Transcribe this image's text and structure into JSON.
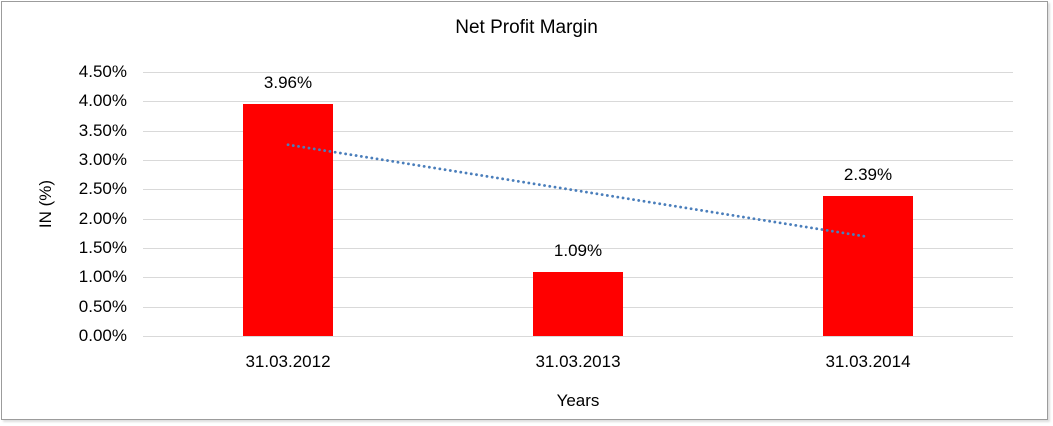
{
  "chart_data": {
    "type": "bar",
    "title": "Net Profit Margin",
    "xlabel": "Years",
    "ylabel": "IN (%)",
    "categories": [
      "31.03.2012",
      "31.03.2013",
      "31.03.2014"
    ],
    "values": [
      3.96,
      1.09,
      2.39
    ],
    "data_labels": [
      "3.96%",
      "1.09%",
      "2.39%"
    ],
    "ylim": [
      0,
      4.5
    ],
    "ytick_step": 0.5,
    "ytick_labels": [
      "0.00%",
      "0.50%",
      "1.00%",
      "1.50%",
      "2.00%",
      "2.50%",
      "3.00%",
      "3.50%",
      "4.00%",
      "4.50%"
    ],
    "grid": true,
    "legend": "none",
    "bar_color": "#ff0000",
    "gridline_color": "#d9d9d9",
    "text_color": "#000000",
    "trendline": {
      "type": "linear",
      "style": "dotted",
      "color": "#4a7ebb",
      "start_value": 3.26,
      "end_value": 1.69
    }
  }
}
